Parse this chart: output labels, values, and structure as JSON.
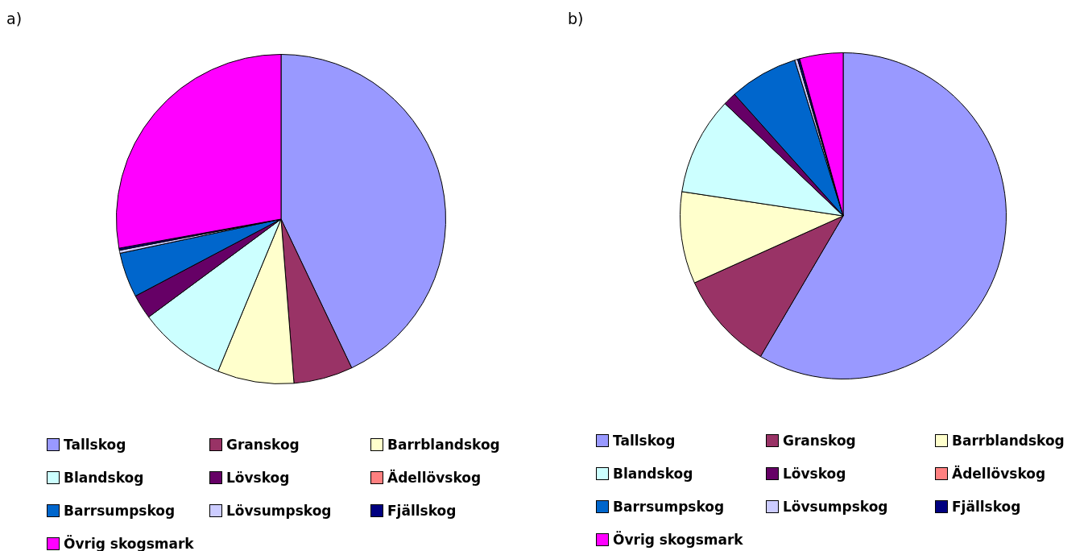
{
  "chart_data": [
    {
      "type": "pie",
      "title": "a)",
      "legend": "bottom",
      "categories": [
        "Tallskog",
        "Granskog",
        "Barrblandskog",
        "Blandskog",
        "Lövskog",
        "Ädellövskog",
        "Barrsumpskog",
        "Lövsumpskog",
        "Fjällskog",
        "Övrig skogsmark"
      ],
      "values": [
        42.9,
        5.8,
        7.5,
        8.6,
        2.4,
        null,
        4.4,
        0.3,
        0.2,
        27.8
      ],
      "colors": [
        "#9999ff",
        "#993366",
        "#ffffcc",
        "#ccffff",
        "#660066",
        "#ff8080",
        "#0066cc",
        "#ccccff",
        "#000080",
        "#ff00ff"
      ]
    },
    {
      "type": "pie",
      "title": "b)",
      "legend": "bottom",
      "categories": [
        "Tallskog",
        "Granskog",
        "Barrblandskog",
        "Blandskog",
        "Lövskog",
        "Ädellövskog",
        "Barrsumpskog",
        "Lövsumpskog",
        "Fjällskog",
        "Övrig skogsmark"
      ],
      "values": [
        58.4,
        9.8,
        9.1,
        9.7,
        1.3,
        null,
        6.8,
        0.3,
        0.2,
        4.3
      ],
      "colors": [
        "#9999ff",
        "#993366",
        "#ffffcc",
        "#ccffff",
        "#660066",
        "#ff8080",
        "#0066cc",
        "#ccccff",
        "#000080",
        "#ff00ff"
      ]
    }
  ]
}
